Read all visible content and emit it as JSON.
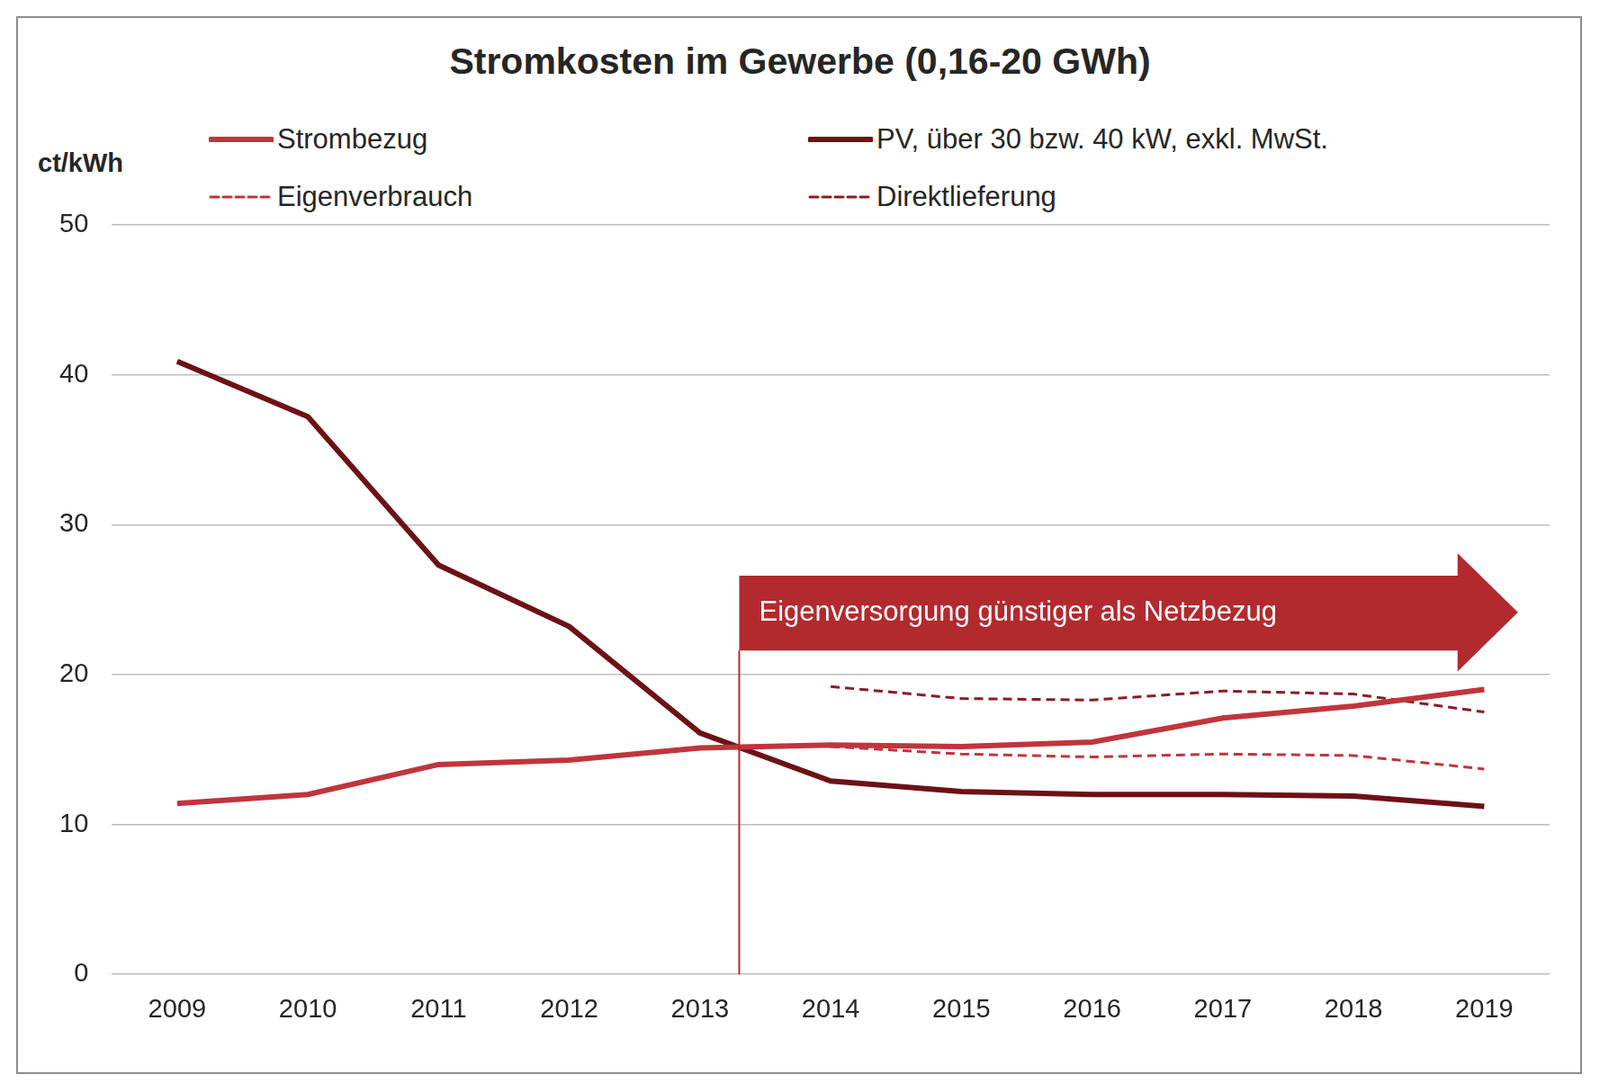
{
  "chart_data": {
    "type": "line",
    "title": "Stromkosten im Gewerbe (0,16-20 GWh)",
    "y_label": "ct/kWh",
    "categories": [
      "2009",
      "2010",
      "2011",
      "2012",
      "2013",
      "2014",
      "2015",
      "2016",
      "2017",
      "2018",
      "2019"
    ],
    "series": [
      {
        "name": "Strombezug",
        "color": "#c0353d",
        "line_style": "solid",
        "values": [
          11.4,
          12.0,
          14.0,
          14.3,
          15.1,
          15.3,
          15.2,
          15.5,
          17.1,
          17.9,
          19.0
        ]
      },
      {
        "name": "PV, über 30 bzw. 40 kW, exkl. MwSt.",
        "color": "#6d1116",
        "line_style": "solid",
        "values": [
          40.9,
          37.2,
          27.3,
          23.2,
          16.1,
          12.9,
          12.2,
          12.0,
          12.0,
          11.9,
          11.2
        ]
      },
      {
        "name": "Eigenverbrauch",
        "color": "#c0353d",
        "line_style": "dashed",
        "values": [
          null,
          null,
          null,
          null,
          null,
          15.2,
          14.7,
          14.5,
          14.7,
          14.6,
          13.7
        ]
      },
      {
        "name": "Direktlieferung",
        "color": "#8b1c22",
        "line_style": "dashed",
        "values": [
          null,
          null,
          null,
          null,
          null,
          19.2,
          18.4,
          18.3,
          18.9,
          18.7,
          17.5
        ]
      }
    ],
    "ylim": [
      0,
      50
    ],
    "yticks": [
      0,
      10,
      20,
      30,
      40,
      50
    ],
    "grid": true,
    "legend": "top",
    "annotation": {
      "text": "Eigenversorgung günstiger als Netzbezug",
      "x": 2013.3
    }
  }
}
